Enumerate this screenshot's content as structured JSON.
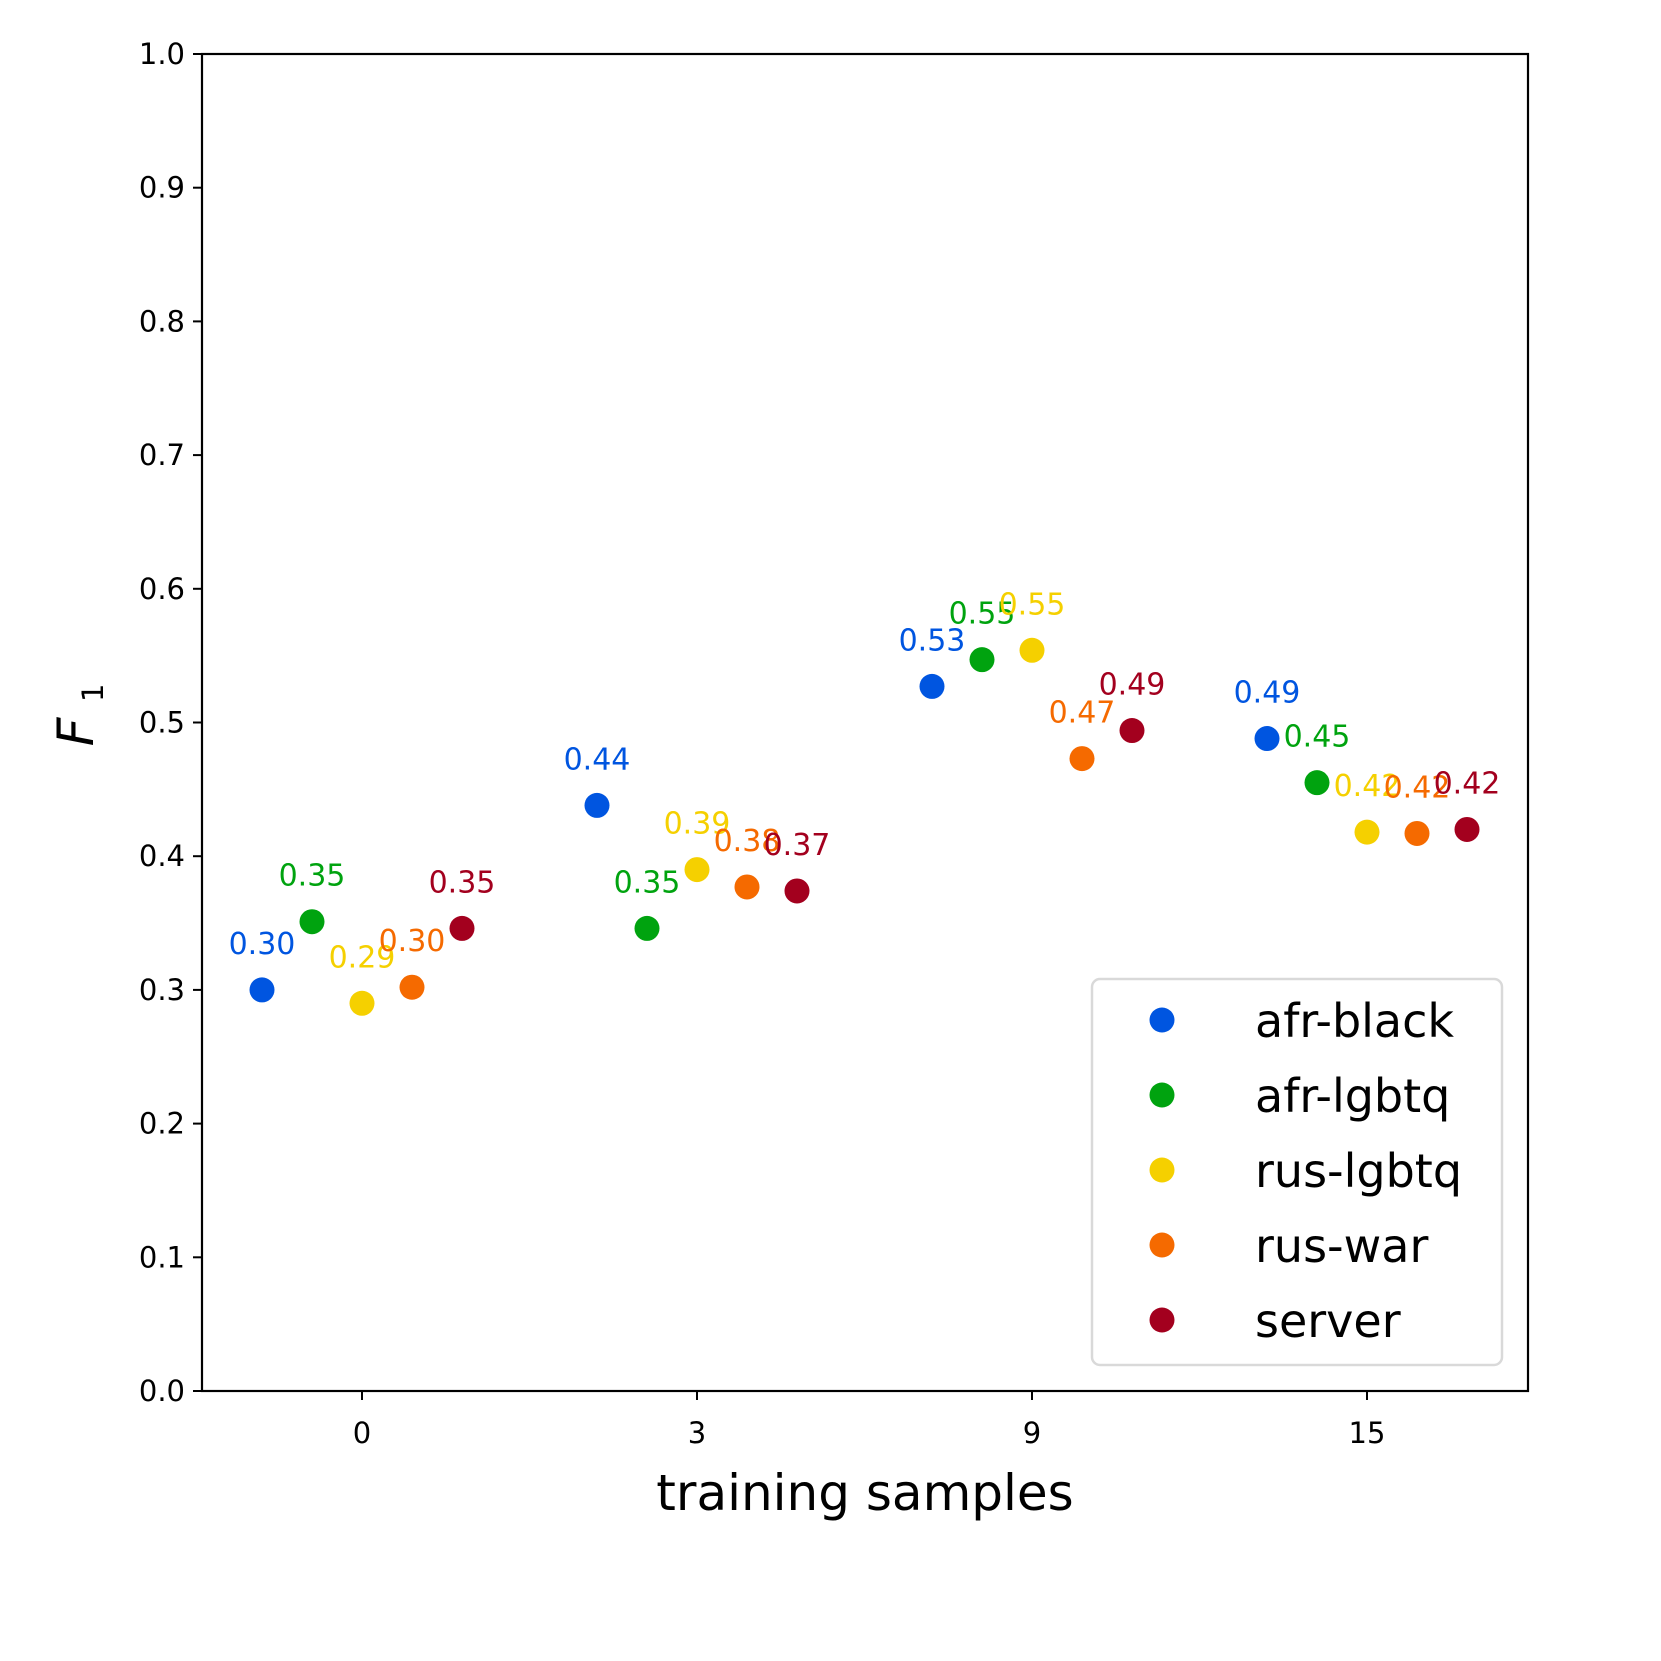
{
  "chart_data": {
    "type": "scatter",
    "title": "",
    "xlabel": "training samples",
    "ylabel": "F",
    "ylabel_subscript": "1",
    "categories": [
      "0",
      "3",
      "9",
      "15"
    ],
    "ylim": [
      0.0,
      1.0
    ],
    "yticks": [
      "0.0",
      "0.1",
      "0.2",
      "0.3",
      "0.4",
      "0.5",
      "0.6",
      "0.7",
      "0.8",
      "0.9",
      "1.0"
    ],
    "grid": false,
    "legend_position": "lower-right",
    "series": [
      {
        "name": "afr-black",
        "color": "#0055e0",
        "values": [
          0.3,
          0.438,
          0.527,
          0.488
        ],
        "labels": [
          "0.30",
          "0.44",
          "0.53",
          "0.49"
        ]
      },
      {
        "name": "afr-lgbtq",
        "color": "#00a30f",
        "values": [
          0.351,
          0.346,
          0.547,
          0.455
        ],
        "labels": [
          "0.35",
          "0.35",
          "0.55",
          "0.45"
        ]
      },
      {
        "name": "rus-lgbtq",
        "color": "#f5d000",
        "values": [
          0.29,
          0.39,
          0.554,
          0.418
        ],
        "labels": [
          "0.29",
          "0.39",
          "0.55",
          "0.42"
        ]
      },
      {
        "name": "rus-war",
        "color": "#f56a00",
        "values": [
          0.302,
          0.377,
          0.473,
          0.417
        ],
        "labels": [
          "0.30",
          "0.38",
          "0.47",
          "0.42"
        ]
      },
      {
        "name": "server",
        "color": "#a3001e",
        "values": [
          0.346,
          0.374,
          0.494,
          0.42
        ],
        "labels": [
          "0.35",
          "0.37",
          "0.49",
          "0.42"
        ]
      }
    ]
  }
}
